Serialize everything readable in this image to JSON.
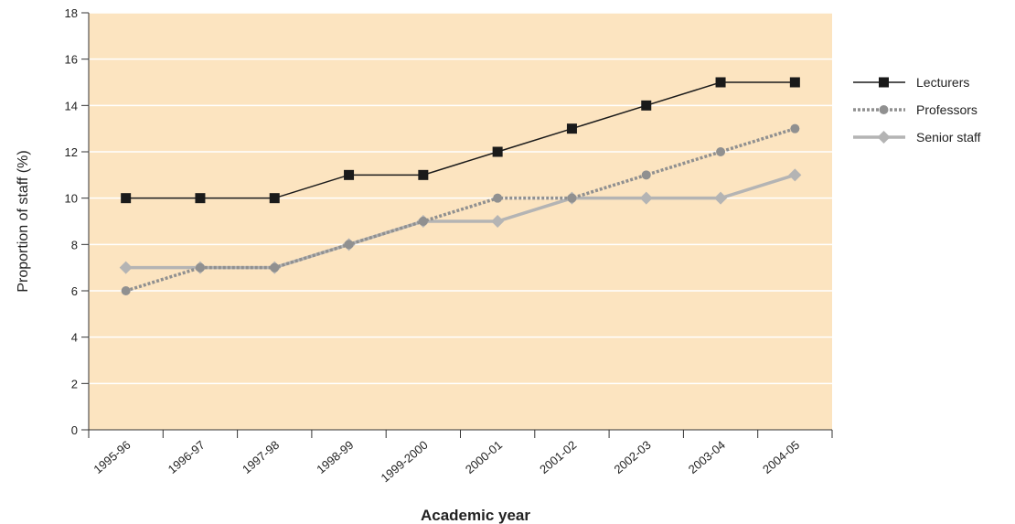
{
  "chart_data": {
    "type": "line",
    "title": "",
    "xlabel": "Academic year",
    "ylabel": "Proportion of staff (%)",
    "categories": [
      "1995-96",
      "1996-97",
      "1997-98",
      "1998-99",
      "1999-2000",
      "2000-01",
      "2001-02",
      "2002-03",
      "2003-04",
      "2004-05"
    ],
    "ylim": [
      0,
      18
    ],
    "yticks": [
      0,
      2,
      4,
      6,
      8,
      10,
      12,
      14,
      16,
      18
    ],
    "grid": "horizontal",
    "legend_position": "right",
    "background_color": "#fce4c0",
    "series": [
      {
        "name": "Lecturers",
        "values": [
          10,
          10,
          10,
          11,
          11,
          12,
          13,
          14,
          15,
          15
        ],
        "color": "#1a1a1a",
        "marker": "square",
        "line_style": "solid"
      },
      {
        "name": "Professors",
        "values": [
          6,
          7,
          7,
          8,
          9,
          10,
          10,
          11,
          12,
          13
        ],
        "color": "#909090",
        "marker": "circle",
        "line_style": "dotted"
      },
      {
        "name": "Senior staff",
        "values": [
          7,
          7,
          7,
          8,
          9,
          9,
          10,
          10,
          10,
          11
        ],
        "color": "#b4b4b4",
        "marker": "diamond",
        "line_style": "solid"
      }
    ]
  }
}
